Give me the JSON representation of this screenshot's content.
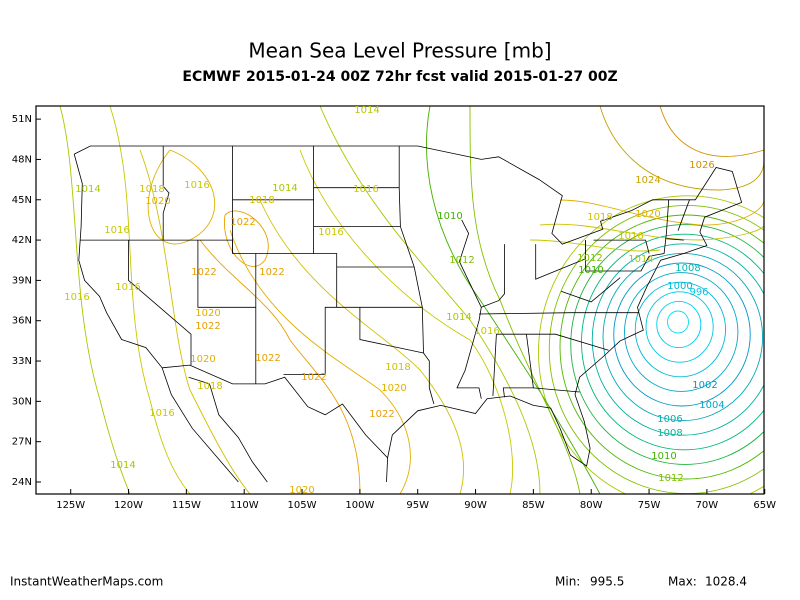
{
  "header": {
    "title": "Mean Sea Level Pressure [mb]",
    "subtitle": "ECMWF 2015-01-24 00Z 72hr fcst valid 2015-01-27 00Z"
  },
  "map": {
    "lat_ticks": [
      {
        "value": 51,
        "label": "51N"
      },
      {
        "value": 48,
        "label": "48N"
      },
      {
        "value": 45,
        "label": "45N"
      },
      {
        "value": 42,
        "label": "42N"
      },
      {
        "value": 39,
        "label": "39N"
      },
      {
        "value": 36,
        "label": "36N"
      },
      {
        "value": 33,
        "label": "33N"
      },
      {
        "value": 30,
        "label": "30N"
      },
      {
        "value": 27,
        "label": "27N"
      },
      {
        "value": 24,
        "label": "24N"
      }
    ],
    "lon_ticks": [
      {
        "value": -125,
        "label": "125W"
      },
      {
        "value": -120,
        "label": "120W"
      },
      {
        "value": -115,
        "label": "115W"
      },
      {
        "value": -110,
        "label": "110W"
      },
      {
        "value": -105,
        "label": "105W"
      },
      {
        "value": -100,
        "label": "100W"
      },
      {
        "value": -95,
        "label": "95W"
      },
      {
        "value": -90,
        "label": "90W"
      },
      {
        "value": -85,
        "label": "85W"
      },
      {
        "value": -80,
        "label": "80W"
      },
      {
        "value": -75,
        "label": "75W"
      },
      {
        "value": -70,
        "label": "70W"
      },
      {
        "value": -65,
        "label": "65W"
      }
    ],
    "contour_labels": [
      "1014",
      "1026",
      "1024",
      "1014",
      "1018",
      "1016",
      "1014",
      "1016",
      "1020",
      "1018",
      "1018",
      "1020",
      "1010",
      "1016",
      "1016",
      "1016",
      "1022",
      "1012",
      "1012",
      "1014",
      "1010",
      "1022",
      "1022",
      "1008",
      "1000",
      "996",
      "1016",
      "1016",
      "1014",
      "1016",
      "1020",
      "1022",
      "1020",
      "1022",
      "1018",
      "1022",
      "1018",
      "1020",
      "1002",
      "1004",
      "1016",
      "1022",
      "1006",
      "1008",
      "1010",
      "1014",
      "1012",
      "1020"
    ]
  },
  "footer": {
    "site": "InstantWeatherMaps.com",
    "min_label": "Min:",
    "min_value": "995.5",
    "max_label": "Max:",
    "max_value": "1028.4"
  }
}
